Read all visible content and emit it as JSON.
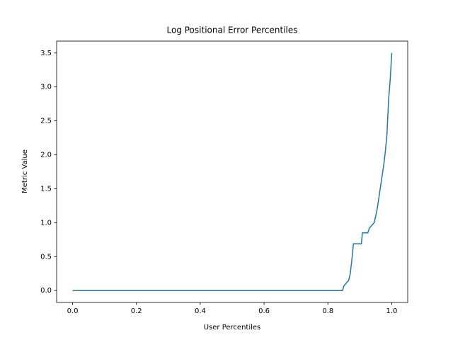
{
  "chart_data": {
    "type": "line",
    "title": "Log Positional Error Percentiles",
    "xlabel": "User Percentiles",
    "ylabel": "Metric Value",
    "x": [
      0,
      0.846,
      0.85,
      0.865,
      0.87,
      0.875,
      0.88,
      0.905,
      0.908,
      0.925,
      0.93,
      0.945,
      0.95,
      0.955,
      0.96,
      0.967,
      0.975,
      0.98,
      0.985,
      0.99,
      0.995,
      1.0
    ],
    "series": [
      {
        "name": "Metric Value",
        "color": "#1f77b4",
        "values": [
          0,
          0,
          0.07,
          0.15,
          0.25,
          0.45,
          0.69,
          0.69,
          0.85,
          0.85,
          0.92,
          1.0,
          1.1,
          1.22,
          1.38,
          1.6,
          1.85,
          2.05,
          2.3,
          2.8,
          3.1,
          3.5
        ]
      }
    ],
    "xlim": [
      -0.05,
      1.05
    ],
    "xticks": [
      {
        "value": 0,
        "label": "0.0"
      },
      0.2,
      0.4,
      0.6,
      0.8,
      {
        "value": 1,
        "label": "1.0"
      }
    ],
    "ylim": [
      -0.175,
      3.675
    ],
    "yticks": [
      {
        "value": 0,
        "label": "0.0"
      },
      0.5,
      {
        "value": 1,
        "label": "1.0"
      },
      1.5,
      {
        "value": 2,
        "label": "2.0"
      },
      2.5,
      {
        "value": 3,
        "label": "3.0"
      },
      3.5
    ],
    "grid": false
  }
}
